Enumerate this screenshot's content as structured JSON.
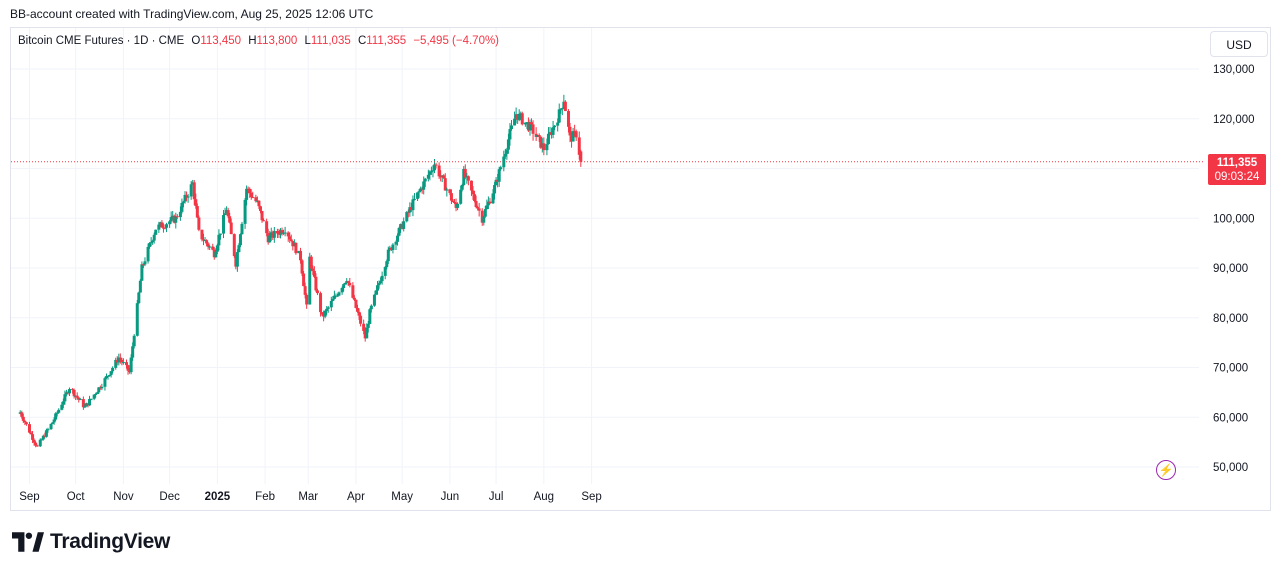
{
  "header": {
    "attribution": "BB-account created with TradingView.com, Aug 25, 2025 12:06 UTC"
  },
  "legend": {
    "symbol": "Bitcoin CME Futures · 1D · CME",
    "open_label": "O",
    "open": "113,450",
    "high_label": "H",
    "high": "113,800",
    "low_label": "L",
    "low": "111,035",
    "close_label": "C",
    "close": "111,355",
    "change": "−5,495 (−4.70%)"
  },
  "currency": "USD",
  "last_price": {
    "price": "111,355",
    "countdown": "09:03:24"
  },
  "footer": {
    "logo_text": "TradingView"
  },
  "colors": {
    "up": "#089981",
    "down": "#f23645",
    "grid": "#f0f3fa",
    "accent": "#9c27b0"
  },
  "chart_data": {
    "type": "candlestick",
    "x_ticks": [
      "Sep",
      "Oct",
      "Nov",
      "Dec",
      "2025",
      "Feb",
      "Mar",
      "Apr",
      "May",
      "Jun",
      "Jul",
      "Aug",
      "Sep"
    ],
    "y_ticks": [
      "130,000",
      "120,000",
      "110,000",
      "100,000",
      "90,000",
      "80,000",
      "70,000",
      "60,000",
      "50,000"
    ],
    "ylim": [
      45000,
      133000
    ],
    "last_price": 111355,
    "grid": true,
    "series": [
      {
        "date": "2024-08-26",
        "close": 61000
      },
      {
        "date": "2024-09-06",
        "close": 54000
      },
      {
        "date": "2024-09-16",
        "close": 59000
      },
      {
        "date": "2024-09-27",
        "close": 66000
      },
      {
        "date": "2024-10-07",
        "close": 62000
      },
      {
        "date": "2024-10-21",
        "close": 68000
      },
      {
        "date": "2024-10-29",
        "close": 72000
      },
      {
        "date": "2024-11-05",
        "close": 69000
      },
      {
        "date": "2024-11-08",
        "close": 77000
      },
      {
        "date": "2024-11-13",
        "close": 90000
      },
      {
        "date": "2024-11-22",
        "close": 98000
      },
      {
        "date": "2024-12-05",
        "close": 100000
      },
      {
        "date": "2024-12-16",
        "close": 107000
      },
      {
        "date": "2024-12-20",
        "close": 97000
      },
      {
        "date": "2024-12-30",
        "close": 93000
      },
      {
        "date": "2025-01-07",
        "close": 102000
      },
      {
        "date": "2025-01-13",
        "close": 91000
      },
      {
        "date": "2025-01-20",
        "close": 106000
      },
      {
        "date": "2025-01-27",
        "close": 103000
      },
      {
        "date": "2025-02-03",
        "close": 96000
      },
      {
        "date": "2025-02-14",
        "close": 98000
      },
      {
        "date": "2025-02-24",
        "close": 92000
      },
      {
        "date": "2025-02-28",
        "close": 82000
      },
      {
        "date": "2025-03-02",
        "close": 92000
      },
      {
        "date": "2025-03-10",
        "close": 80000
      },
      {
        "date": "2025-03-20",
        "close": 85000
      },
      {
        "date": "2025-03-26",
        "close": 88000
      },
      {
        "date": "2025-04-07",
        "close": 76000
      },
      {
        "date": "2025-04-10",
        "close": 81000
      },
      {
        "date": "2025-04-22",
        "close": 93000
      },
      {
        "date": "2025-05-08",
        "close": 103000
      },
      {
        "date": "2025-05-22",
        "close": 111000
      },
      {
        "date": "2025-06-05",
        "close": 102000
      },
      {
        "date": "2025-06-10",
        "close": 109000
      },
      {
        "date": "2025-06-22",
        "close": 100000
      },
      {
        "date": "2025-07-01",
        "close": 107000
      },
      {
        "date": "2025-07-10",
        "close": 117000
      },
      {
        "date": "2025-07-14",
        "close": 121000
      },
      {
        "date": "2025-07-24",
        "close": 118000
      },
      {
        "date": "2025-08-01",
        "close": 114000
      },
      {
        "date": "2025-08-11",
        "close": 121000
      },
      {
        "date": "2025-08-14",
        "close": 124000
      },
      {
        "date": "2025-08-18",
        "close": 116000
      },
      {
        "date": "2025-08-22",
        "close": 117000
      },
      {
        "date": "2025-08-25",
        "close": 111355
      }
    ]
  }
}
